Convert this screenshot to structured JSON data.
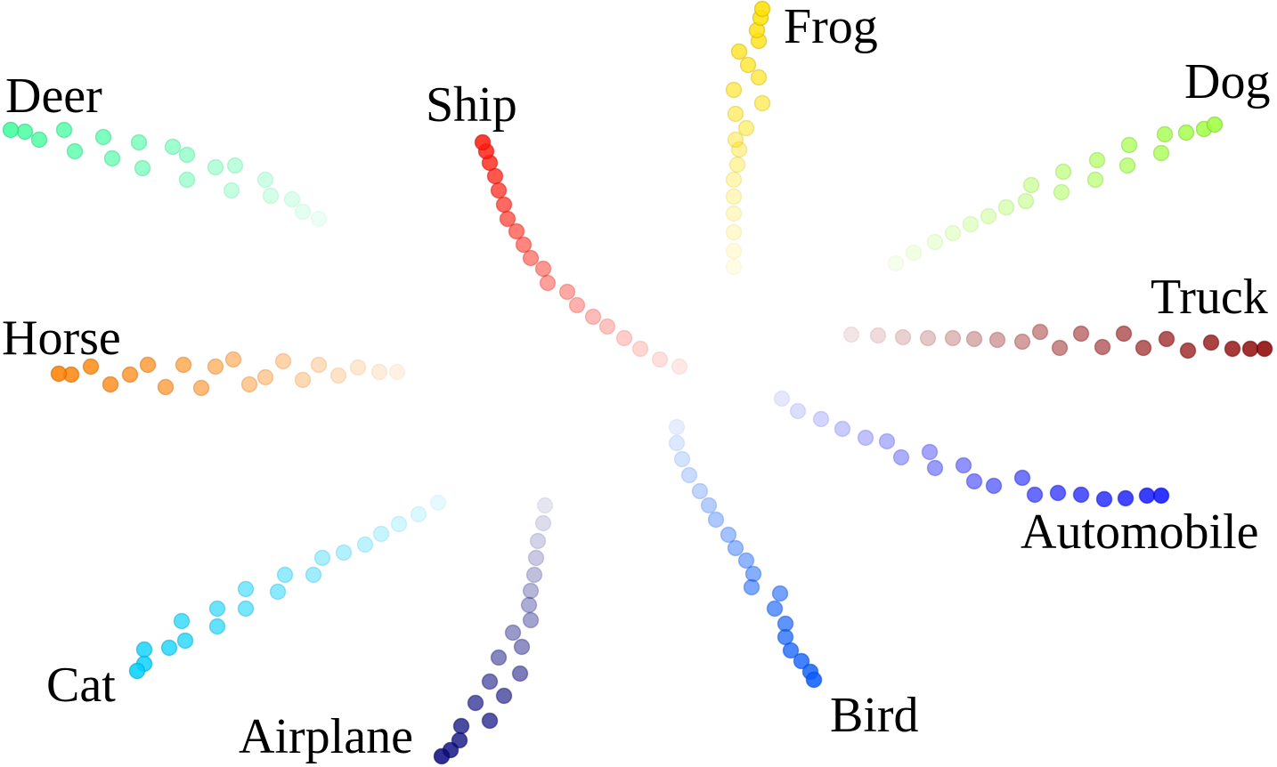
{
  "classes": [
    {
      "id": "ship",
      "label": "Ship",
      "color": "#ff1a0d"
    },
    {
      "id": "frog",
      "label": "Frog",
      "color": "#ffe000"
    },
    {
      "id": "dog",
      "label": "Dog",
      "color": "#9dff3c"
    },
    {
      "id": "truck",
      "label": "Truck",
      "color": "#8b0000"
    },
    {
      "id": "automobile",
      "label": "Automobile",
      "color": "#0a10ff"
    },
    {
      "id": "bird",
      "label": "Bird",
      "color": "#0a5cff"
    },
    {
      "id": "airplane",
      "label": "Airplane",
      "color": "#0a0a80"
    },
    {
      "id": "cat",
      "label": "Cat",
      "color": "#00d0ff"
    },
    {
      "id": "horse",
      "label": "Horse",
      "color": "#ff7f00"
    },
    {
      "id": "deer",
      "label": "Deer",
      "color": "#3cff9d"
    }
  ]
}
